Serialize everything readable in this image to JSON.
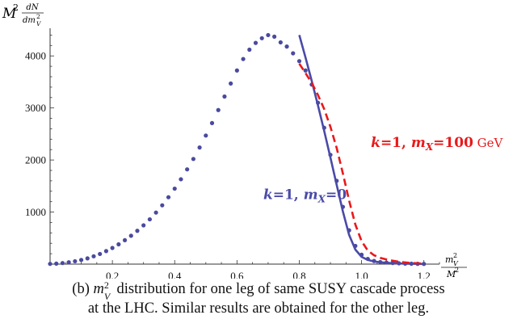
{
  "chart_data": {
    "type": "line",
    "xlim": [
      0,
      1.25
    ],
    "ylim": [
      0,
      4500
    ],
    "xticks": [
      0.2,
      0.4,
      0.6,
      0.8,
      1.0,
      1.2
    ],
    "xtick_labels": [
      "0.2",
      "0.4",
      "0.6",
      "0.8",
      "1.0",
      "1.2"
    ],
    "yticks": [
      1000,
      2000,
      3000,
      4000
    ],
    "ytick_labels": [
      "1000",
      "2000",
      "3000",
      "4000"
    ],
    "ylabel": "M² dN/dm²_V",
    "xlabel": "m²_V / M²",
    "grid": false,
    "series": [
      {
        "name": "data",
        "style": "dots",
        "color": "#4a4a9e",
        "x": [
          0.0,
          0.02,
          0.04,
          0.06,
          0.08,
          0.1,
          0.12,
          0.14,
          0.16,
          0.18,
          0.2,
          0.22,
          0.24,
          0.26,
          0.28,
          0.3,
          0.32,
          0.34,
          0.36,
          0.38,
          0.4,
          0.42,
          0.44,
          0.46,
          0.48,
          0.5,
          0.52,
          0.54,
          0.56,
          0.58,
          0.6,
          0.62,
          0.64,
          0.66,
          0.68,
          0.7,
          0.72,
          0.74,
          0.76,
          0.78,
          0.8,
          0.82,
          0.84,
          0.86,
          0.88,
          0.9,
          0.92,
          0.94,
          0.96,
          0.98,
          1.0,
          1.02,
          1.04,
          1.06,
          1.08,
          1.1,
          1.12,
          1.14,
          1.16,
          1.18,
          1.2
        ],
        "y": [
          5,
          10,
          20,
          35,
          55,
          80,
          110,
          150,
          195,
          250,
          310,
          380,
          460,
          545,
          640,
          745,
          860,
          990,
          1130,
          1285,
          1450,
          1630,
          1820,
          2020,
          2240,
          2470,
          2710,
          2960,
          3220,
          3470,
          3720,
          3940,
          4120,
          4250,
          4340,
          4400,
          4370,
          4260,
          4180,
          4050,
          3900,
          3720,
          3450,
          3100,
          2620,
          2100,
          1600,
          1100,
          650,
          350,
          180,
          100,
          60,
          40,
          30,
          20,
          15,
          10,
          8,
          6,
          4
        ]
      },
      {
        "name": "k=1, m_X=0",
        "style": "solid",
        "color": "#4a4aa8",
        "x": [
          0.8,
          0.82,
          0.84,
          0.86,
          0.88,
          0.9,
          0.92,
          0.94,
          0.96,
          0.98,
          1.0,
          1.02,
          1.04,
          1.06,
          1.08,
          1.1,
          1.12,
          1.14,
          1.16,
          1.18,
          1.2
        ],
        "y": [
          4400,
          3970,
          3520,
          3050,
          2560,
          2050,
          1520,
          1010,
          560,
          280,
          140,
          80,
          50,
          35,
          25,
          18,
          12,
          9,
          6,
          4,
          3
        ]
      },
      {
        "name": "k=1, m_X=100 GeV",
        "style": "dashed",
        "color": "#e8191c",
        "x": [
          0.8,
          0.82,
          0.84,
          0.86,
          0.88,
          0.9,
          0.92,
          0.94,
          0.96,
          0.98,
          1.0,
          1.02,
          1.04,
          1.06,
          1.08,
          1.1,
          1.12,
          1.14,
          1.16,
          1.18,
          1.2
        ],
        "y": [
          3850,
          3670,
          3480,
          3250,
          2980,
          2640,
          2230,
          1740,
          1220,
          760,
          440,
          260,
          170,
          120,
          90,
          65,
          45,
          32,
          22,
          15,
          10
        ]
      }
    ],
    "annotations": [
      {
        "series": "k=1, m_X=0",
        "text": "k=1, m_X=0",
        "data_x": 0.905,
        "data_y": 1250
      },
      {
        "series": "k=1, m_X=100 GeV",
        "text": "k=1, m_X=100 GeV",
        "data_x": 1.03,
        "data_y": 2250
      }
    ]
  },
  "labels": {
    "ylabel_M": "M",
    "ylabel_exp": "2",
    "ylabel_num": "dN",
    "ylabel_den_base": "dm",
    "ylabel_den_exp": "2",
    "ylabel_den_sub": "V",
    "xlabel_num_base": "m",
    "xlabel_num_exp": "2",
    "xlabel_num_sub": "V",
    "xlabel_den_base": "M",
    "xlabel_den_exp": "2",
    "ann_blue_k": "k",
    "ann_blue_eq1": "=1, ",
    "ann_blue_m": "m",
    "ann_blue_sub": "X",
    "ann_blue_eq2": "=0",
    "ann_red_k": "k",
    "ann_red_eq1": "=1, ",
    "ann_red_m": "m",
    "ann_red_sub": "X",
    "ann_red_eq2": "=100",
    "ann_red_unit": " GeV"
  },
  "caption": {
    "prefix": "(b) ",
    "sym_base": "m",
    "sym_exp": "2",
    "sym_sub": "V",
    "line1_rest": " distribution for one leg of same SUSY cascade process",
    "line2": "at the LHC. Similar results are obtained for the other leg."
  }
}
